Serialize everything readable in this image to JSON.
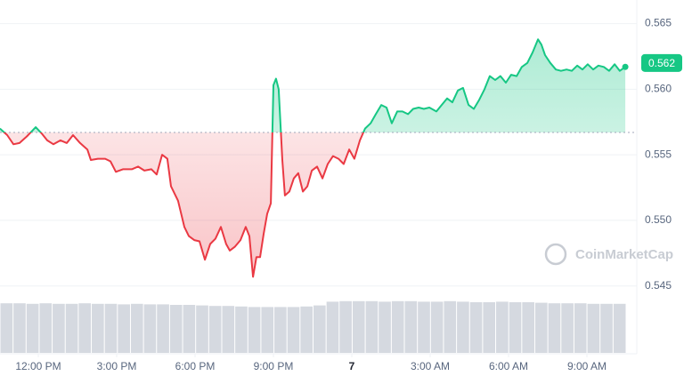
{
  "chart_data": {
    "type": "line",
    "x": [
      -1.47,
      -1.19,
      -0.95,
      -0.72,
      -0.44,
      -0.1,
      0.14,
      0.34,
      0.58,
      0.85,
      1.09,
      1.33,
      1.6,
      1.88,
      2.01,
      2.28,
      2.56,
      2.76,
      2.97,
      3.24,
      3.58,
      3.82,
      4.06,
      4.33,
      4.53,
      4.74,
      4.94,
      5.08,
      5.35,
      5.59,
      5.76,
      5.97,
      6.17,
      6.38,
      6.58,
      6.78,
      6.99,
      7.19,
      7.33,
      7.53,
      7.74,
      7.94,
      8.08,
      8.22,
      8.35,
      8.49,
      8.63,
      8.76,
      8.9,
      9.0,
      9.1,
      9.2,
      9.34,
      9.44,
      9.61,
      9.78,
      9.95,
      10.13,
      10.3,
      10.47,
      10.67,
      10.88,
      11.08,
      11.28,
      11.49,
      11.69,
      11.9,
      12.1,
      12.31,
      12.51,
      12.72,
      12.92,
      13.13,
      13.33,
      13.53,
      13.74,
      13.94,
      14.15,
      14.35,
      14.56,
      14.76,
      14.97,
      15.24,
      15.44,
      15.65,
      15.85,
      16.06,
      16.26,
      16.47,
      16.67,
      16.88,
      17.08,
      17.28,
      17.49,
      17.69,
      17.9,
      18.1,
      18.31,
      18.51,
      18.72,
      18.92,
      19.13,
      19.26,
      19.4,
      19.6,
      19.81,
      20.01,
      20.22,
      20.42,
      20.63,
      20.83,
      21.03,
      21.24,
      21.44,
      21.65,
      21.85,
      22.06,
      22.26,
      22.47
    ],
    "values": [
      0.557,
      0.5565,
      0.5558,
      0.5559,
      0.5564,
      0.5571,
      0.5566,
      0.5561,
      0.5558,
      0.5561,
      0.5559,
      0.5565,
      0.5559,
      0.5554,
      0.5546,
      0.5547,
      0.5547,
      0.5545,
      0.5537,
      0.5539,
      0.5539,
      0.5541,
      0.5538,
      0.5539,
      0.5535,
      0.555,
      0.5547,
      0.5526,
      0.5515,
      0.5495,
      0.5488,
      0.5485,
      0.5484,
      0.547,
      0.5482,
      0.5486,
      0.5495,
      0.5482,
      0.5477,
      0.548,
      0.5485,
      0.5495,
      0.5488,
      0.5457,
      0.5472,
      0.5472,
      0.549,
      0.5505,
      0.5513,
      0.5603,
      0.5608,
      0.56,
      0.5546,
      0.5519,
      0.5522,
      0.5532,
      0.5536,
      0.5522,
      0.5526,
      0.5538,
      0.5541,
      0.5532,
      0.5543,
      0.5549,
      0.5547,
      0.5543,
      0.5554,
      0.5547,
      0.5561,
      0.557,
      0.5574,
      0.5581,
      0.5588,
      0.5586,
      0.5574,
      0.5583,
      0.5583,
      0.5581,
      0.5585,
      0.5586,
      0.5585,
      0.5586,
      0.5583,
      0.5588,
      0.5593,
      0.559,
      0.5599,
      0.5601,
      0.5588,
      0.5585,
      0.5592,
      0.56,
      0.561,
      0.5607,
      0.561,
      0.5605,
      0.5611,
      0.561,
      0.5617,
      0.562,
      0.5628,
      0.5638,
      0.5634,
      0.5626,
      0.562,
      0.5615,
      0.5614,
      0.5615,
      0.5614,
      0.5618,
      0.5615,
      0.5619,
      0.5615,
      0.5618,
      0.5617,
      0.5614,
      0.5619,
      0.5614,
      0.5617
    ],
    "baseline": 0.5567,
    "current_price": 0.562,
    "up_color": "#16c784",
    "down_color": "#ea3943",
    "xlim": [
      -1.466,
      22.91
    ],
    "xticks": [
      {
        "value": 0,
        "label": "12:00 PM"
      },
      {
        "value": 3,
        "label": "3:00 PM"
      },
      {
        "value": 6,
        "label": "6:00 PM"
      },
      {
        "value": 9,
        "label": "9:00 PM"
      },
      {
        "value": 12,
        "label": "7"
      },
      {
        "value": 15,
        "label": "3:00 AM"
      },
      {
        "value": 18,
        "label": "6:00 AM"
      },
      {
        "value": 21,
        "label": "9:00 AM"
      }
    ],
    "ylim": [
      0.5441,
      0.5668
    ],
    "yticks": [
      0.545,
      {
        "value": 0.55,
        "label": "0.550"
      },
      0.555,
      {
        "value": 0.56,
        "label": "0.560"
      },
      0.565
    ],
    "grid": true,
    "watermark": "CoinMarketCap",
    "volume": {
      "color": "#d5d9e0",
      "ylim": [
        0,
        100
      ],
      "values": [
        93,
        93,
        92,
        93,
        92,
        92,
        93,
        92,
        92,
        91,
        92,
        91,
        91,
        90,
        90,
        89,
        88,
        88,
        87,
        86,
        86,
        86,
        86,
        87,
        89,
        96,
        97,
        97,
        97,
        96,
        97,
        97,
        96,
        96,
        97,
        96,
        95,
        95,
        96,
        95,
        95,
        94,
        93,
        93,
        93,
        92,
        92,
        92
      ]
    }
  }
}
